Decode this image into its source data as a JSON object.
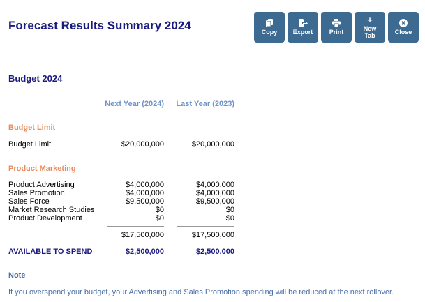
{
  "page": {
    "title": "Forecast Results Summary 2024"
  },
  "toolbar": {
    "buttons": [
      {
        "label": "Copy",
        "icon": "copy-icon"
      },
      {
        "label": "Export",
        "icon": "export-icon"
      },
      {
        "label": "Print",
        "icon": "print-icon"
      },
      {
        "label": "New Tab",
        "label_line1": "New",
        "label_line2": "Tab",
        "icon": "plus-icon"
      },
      {
        "label": "Close",
        "icon": "close-icon"
      }
    ],
    "color": "#3d6a91"
  },
  "budget": {
    "section_title": "Budget 2024",
    "columns": {
      "next_year": "Next Year (2024)",
      "last_year": "Last Year (2023)"
    },
    "budget_limit": {
      "group_title": "Budget Limit",
      "label": "Budget Limit",
      "next_year": "$20,000,000",
      "last_year": "$20,000,000"
    },
    "product_marketing": {
      "group_title": "Product Marketing",
      "rows": [
        {
          "label": "Product Advertising",
          "next_year": "$4,000,000",
          "last_year": "$4,000,000"
        },
        {
          "label": "Sales Promotion",
          "next_year": "$4,000,000",
          "last_year": "$4,000,000"
        },
        {
          "label": "Sales Force",
          "next_year": "$9,500,000",
          "last_year": "$9,500,000"
        },
        {
          "label": "Market Research Studies",
          "next_year": "$0",
          "last_year": "$0"
        },
        {
          "label": "Product Development",
          "next_year": "$0",
          "last_year": "$0"
        }
      ],
      "total": {
        "next_year": "$17,500,000",
        "last_year": "$17,500,000"
      }
    },
    "available": {
      "label": "AVAILABLE TO SPEND",
      "next_year": "$2,500,000",
      "last_year": "$2,500,000"
    }
  },
  "note": {
    "title": "Note",
    "text": "If you overspend your budget, your Advertising and Sales Promotion spending will be reduced at the next rollover."
  },
  "colors": {
    "title": "#1a1a7e",
    "group": "#e98a5c",
    "column_head": "#6f93c7",
    "note": "#4a6fa8"
  }
}
